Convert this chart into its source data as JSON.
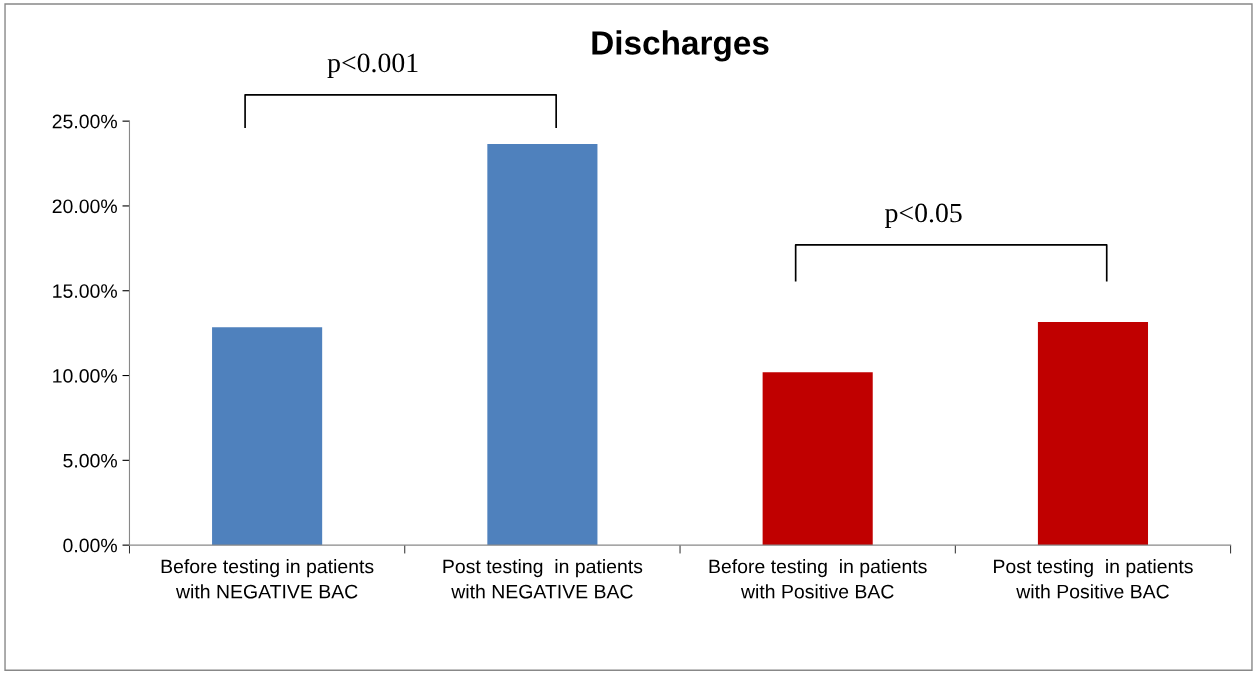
{
  "chart_data": {
    "type": "bar",
    "title": "Discharges",
    "categories": [
      "Before testing in patients with NEGATIVE BAC",
      "Post testing  in patients with NEGATIVE BAC",
      "Before testing  in patients with Positive BAC",
      "Post testing  in patients with Positive BAC"
    ],
    "values": [
      12.85,
      23.65,
      10.2,
      13.15
    ],
    "colors": [
      "#4f81bd",
      "#4f81bd",
      "#c00000",
      "#c00000"
    ],
    "ylim": [
      0,
      25
    ],
    "yticks": [
      {
        "value": 0,
        "label": "0.00%"
      },
      {
        "value": 5,
        "label": "5.00%"
      },
      {
        "value": 10,
        "label": "10.00%"
      },
      {
        "value": 15,
        "label": "15.00%"
      },
      {
        "value": 20,
        "label": "20.00%"
      },
      {
        "value": 25,
        "label": "25.00%"
      }
    ],
    "grid": false,
    "annotations": [
      "p<0.001",
      "p<0.05"
    ]
  }
}
